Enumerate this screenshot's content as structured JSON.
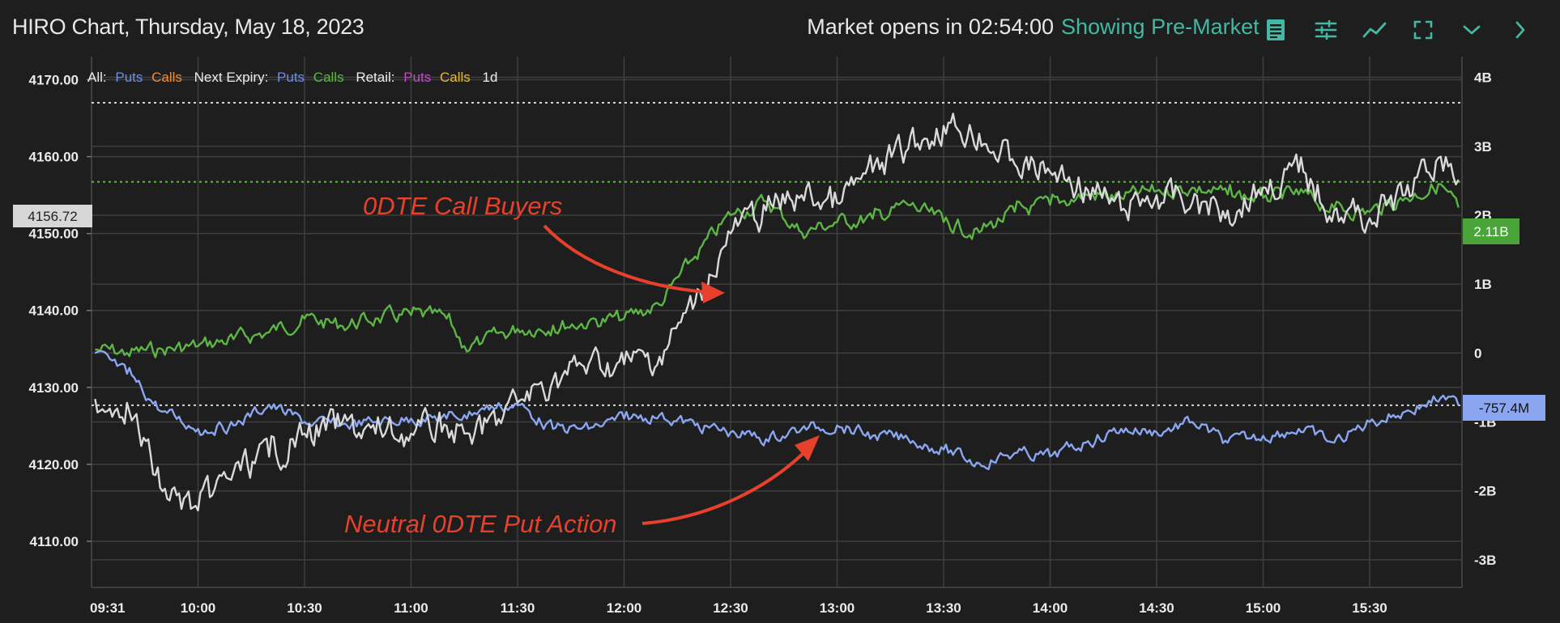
{
  "header": {
    "title": "HIRO Chart, Thursday, May 18, 2023",
    "market_status": "Market opens in 02:54:00",
    "premarket_label": "Showing Pre-Market",
    "icons": [
      "notes-icon",
      "sliders-icon",
      "trend-line-icon",
      "fullscreen-icon",
      "chevron-down-icon",
      "chevron-right-icon"
    ]
  },
  "legend": {
    "all_label": "All:",
    "all_puts": "Puts",
    "all_calls": "Calls",
    "next_label": "Next Expiry:",
    "next_puts": "Puts",
    "next_calls": "Calls",
    "retail_label": "Retail:",
    "retail_puts": "Puts",
    "retail_calls": "Calls",
    "period": "1d"
  },
  "price_marker": "4156.72",
  "calls_marker": "2.11B",
  "puts_marker": "-757.4M",
  "annotations": {
    "calls": "0DTE Call Buyers",
    "puts": "Neutral 0DTE Put Action"
  },
  "colors": {
    "background": "#1e1e1e",
    "price_line": "#d9d9d9",
    "calls_line": "#5db545",
    "puts_line": "#8aa6f0",
    "annotation": "#e7412b",
    "premarket": "#43b8a3",
    "legend_puts": "#6e8ee6",
    "legend_calls_all": "#e98a3c",
    "legend_calls_next": "#5db545",
    "legend_puts_retail": "#c04bc8",
    "legend_calls_retail": "#e2b83a"
  },
  "chart_data": {
    "type": "line",
    "x_ticks": [
      "09:31",
      "10:00",
      "10:30",
      "11:00",
      "11:30",
      "12:00",
      "12:30",
      "13:00",
      "13:30",
      "14:00",
      "14:30",
      "15:00",
      "15:30"
    ],
    "y_left_ticks": [
      "4170.00",
      "4160.00",
      "4150.00",
      "4140.00",
      "4130.00",
      "4120.00",
      "4110.00"
    ],
    "y_right_ticks": [
      "4B",
      "3B",
      "2B",
      "1B",
      "0",
      "-1B",
      "-2B",
      "-3B"
    ],
    "y_left_range": [
      4104,
      4173
    ],
    "y_right_range": [
      -3.4,
      4.3
    ],
    "gridlines": true,
    "reference_lines": {
      "price_high": 4167,
      "price_current": 4156.72,
      "puts_current_b": -0.757
    },
    "x_minutes": [
      571,
      580,
      590,
      600,
      610,
      620,
      630,
      640,
      650,
      660,
      670,
      675,
      680,
      690,
      700,
      710,
      720,
      730,
      740,
      750,
      760,
      770,
      780,
      790,
      800,
      810,
      820,
      830,
      840,
      850,
      860,
      870,
      880,
      890,
      900,
      910,
      920,
      930,
      940,
      950,
      955
    ],
    "series": [
      {
        "name": "",
        "axis": "left",
        "values": [
          4128.5,
          4128,
          4116.5,
          4114,
          4119,
          4121,
          4124,
          4125,
          4124,
          4124,
          4125,
          4124,
          4124,
          4128,
          4131,
          4133,
          4133,
          4134,
          4141,
          4150,
          4153,
          4155,
          4154,
          4158,
          4161,
          4164,
          4163,
          4159,
          4158,
          4156,
          4153,
          4155,
          4154,
          4153,
          4156,
          4158,
          4153,
          4152,
          4155,
          4160,
          4157
        ]
      },
      {
        "name": "Calls",
        "axis": "right",
        "values": [
          0.05,
          0.0,
          0.05,
          0.1,
          0.2,
          0.3,
          0.5,
          0.4,
          0.5,
          0.55,
          0.5,
          0.1,
          0.15,
          0.35,
          0.4,
          0.45,
          0.5,
          0.7,
          1.4,
          2.0,
          2.2,
          1.75,
          1.9,
          1.95,
          2.15,
          1.9,
          1.75,
          2.05,
          2.15,
          2.3,
          2.25,
          2.35,
          2.4,
          2.3,
          2.25,
          2.3,
          2.1,
          2.05,
          2.25,
          2.45,
          2.11
        ]
      },
      {
        "name": "Puts",
        "axis": "right",
        "values": [
          0.0,
          -0.3,
          -0.85,
          -1.1,
          -1.05,
          -0.75,
          -1.0,
          -1.05,
          -1.0,
          -0.95,
          -0.95,
          -0.9,
          -0.8,
          -0.75,
          -1.1,
          -1.1,
          -0.95,
          -0.9,
          -1.05,
          -1.15,
          -1.25,
          -1.1,
          -1.05,
          -1.2,
          -1.25,
          -1.4,
          -1.6,
          -1.45,
          -1.5,
          -1.3,
          -1.1,
          -1.15,
          -1.0,
          -1.3,
          -1.2,
          -1.1,
          -1.3,
          -1.0,
          -0.85,
          -0.65,
          -0.757
        ]
      }
    ]
  }
}
